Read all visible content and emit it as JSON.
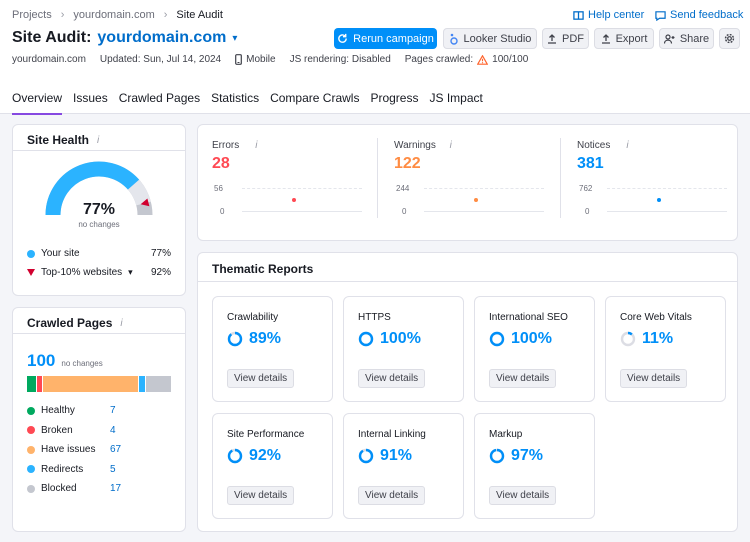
{
  "breadcrumbs": [
    "Projects",
    "yourdomain.com",
    "Site Audit"
  ],
  "help_center": "Help center",
  "send_feedback": "Send feedback",
  "title_prefix": "Site Audit:",
  "title_domain": "yourdomain.com",
  "buttons": {
    "rerun": "Rerun campaign",
    "looker": "Looker Studio",
    "pdf": "PDF",
    "export": "Export",
    "share": "Share"
  },
  "meta": {
    "domain": "yourdomain.com",
    "updated": "Updated: Sun, Jul 14, 2024",
    "device": "Mobile",
    "js_rendering": "JS rendering: Disabled",
    "pages_crawled_label": "Pages crawled:",
    "pages_crawled_value": "100/100"
  },
  "tabs": [
    "Overview",
    "Issues",
    "Crawled Pages",
    "Statistics",
    "Compare Crawls",
    "Progress",
    "JS Impact"
  ],
  "site_health": {
    "title": "Site Health",
    "info": "i",
    "score": "77%",
    "score_value": 77,
    "top10_value": 92,
    "caption": "no changes",
    "your_site_label": "Your site",
    "your_site_value": "77%",
    "top10_label": "Top-10% websites",
    "top10_value_text": "92%"
  },
  "crawled_pages": {
    "title": "Crawled Pages",
    "info": "i",
    "count": "100",
    "caption": "no changes",
    "items": [
      {
        "label": "Healthy",
        "value": "7",
        "color": "#00a95f",
        "n": 7
      },
      {
        "label": "Broken",
        "value": "4",
        "color": "#ff4953",
        "n": 4
      },
      {
        "label": "Have issues",
        "value": "67",
        "color": "#ffb36b",
        "n": 67
      },
      {
        "label": "Redirects",
        "value": "5",
        "color": "#2bb3ff",
        "n": 5
      },
      {
        "label": "Blocked",
        "value": "17",
        "color": "#c4c7cf",
        "n": 17
      }
    ]
  },
  "counters": [
    {
      "label": "Errors",
      "value": "28",
      "color": "#ff4953",
      "axis_max": "56",
      "axis_min": "0"
    },
    {
      "label": "Warnings",
      "value": "122",
      "color": "#ff8c43",
      "axis_max": "244",
      "axis_min": "0"
    },
    {
      "label": "Notices",
      "value": "381",
      "color": "#008ff8",
      "axis_max": "762",
      "axis_min": "0"
    }
  ],
  "counter_info": "i",
  "thematic": {
    "title": "Thematic Reports",
    "view_details": "View details",
    "reports": [
      {
        "name": "Crawlability",
        "value": "89%",
        "pct": 89
      },
      {
        "name": "HTTPS",
        "value": "100%",
        "pct": 100
      },
      {
        "name": "International SEO",
        "value": "100%",
        "pct": 100
      },
      {
        "name": "Core Web Vitals",
        "value": "11%",
        "pct": 11
      },
      {
        "name": "Site Performance",
        "value": "92%",
        "pct": 92
      },
      {
        "name": "Internal Linking",
        "value": "91%",
        "pct": 91
      },
      {
        "name": "Markup",
        "value": "97%",
        "pct": 97
      }
    ]
  },
  "colors": {
    "accent": "#008ff8",
    "link": "#006dca",
    "tab_active": "#8649e1"
  }
}
